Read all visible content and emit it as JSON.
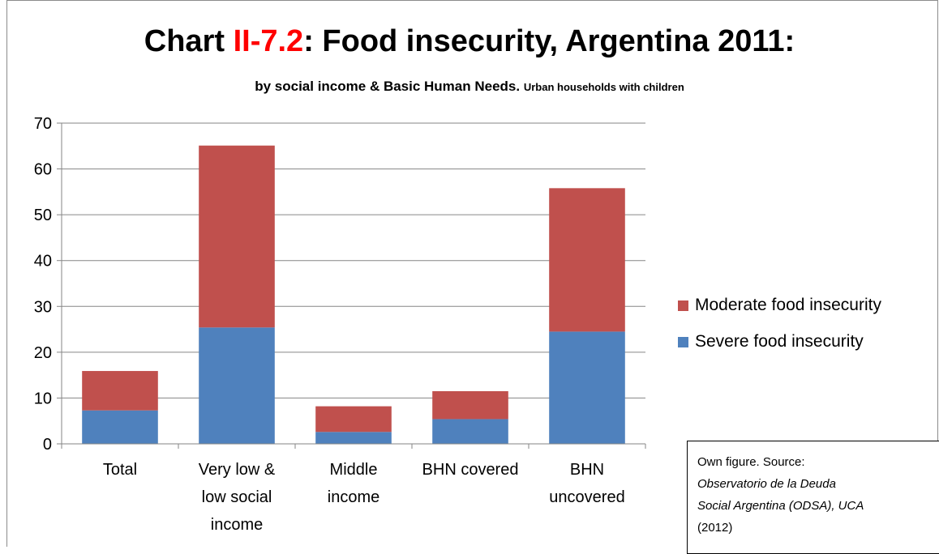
{
  "chart_data": {
    "type": "bar",
    "stacked": true,
    "title_prefix": "Chart ",
    "title_accent": "II-7.2",
    "title_suffix": ": Food insecurity, Argentina 2011:",
    "subtitle_main": "by social income & Basic Human Needs.",
    "subtitle_small": "Urban households with children",
    "categories": [
      [
        "Total"
      ],
      [
        "Very low &",
        "low social",
        "income"
      ],
      [
        "Middle",
        "income"
      ],
      [
        "BHN covered"
      ],
      [
        "BHN",
        "uncovered"
      ]
    ],
    "series": [
      {
        "name": "Severe food insecurity",
        "color": "#4f81bd",
        "values": [
          7.3,
          25.4,
          2.6,
          5.4,
          24.5
        ]
      },
      {
        "name": "Moderate food insecurity",
        "color": "#c0504d",
        "values": [
          8.6,
          39.7,
          5.6,
          6.1,
          31.3
        ]
      }
    ],
    "ylim": [
      0,
      70
    ],
    "yticks": [
      0,
      10,
      20,
      30,
      40,
      50,
      60,
      70
    ],
    "grid": true,
    "legend_position": "right"
  },
  "source_note": {
    "line1": "Own figure. Source:",
    "line2": "Observatorio de la Deuda",
    "line3": "Social Argentina (ODSA), UCA",
    "line4": "(2012)"
  }
}
